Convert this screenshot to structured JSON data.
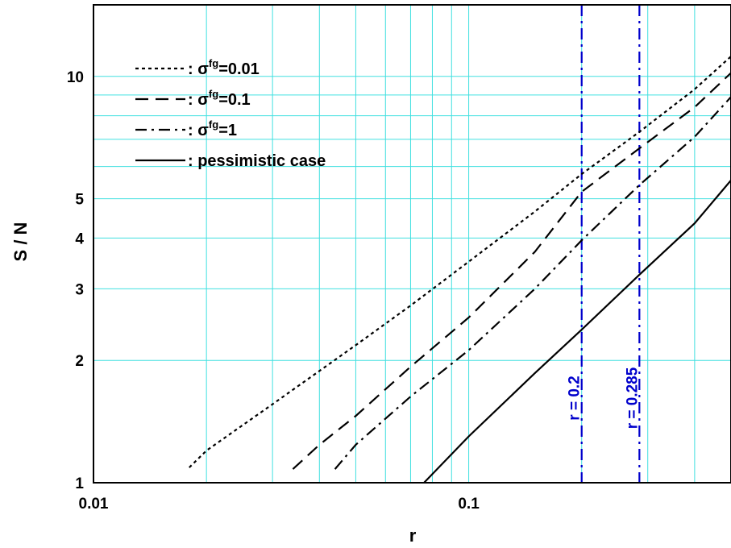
{
  "chart_data": {
    "type": "line",
    "xlabel": "r",
    "ylabel": "S / N",
    "x_scale": "log",
    "y_scale": "log",
    "xlim": [
      0.01,
      0.5
    ],
    "ylim": [
      1,
      15
    ],
    "grid": true,
    "grid_color": "#40e0e0",
    "legend_position": "top-left",
    "x_ticks": [
      {
        "value": 0.01,
        "label": "0.01"
      },
      {
        "value": 0.1,
        "label": "0.1"
      }
    ],
    "y_ticks": [
      {
        "value": 1,
        "label": "1"
      },
      {
        "value": 2,
        "label": "2"
      },
      {
        "value": 3,
        "label": "3"
      },
      {
        "value": 4,
        "label": "4"
      },
      {
        "value": 5,
        "label": "5"
      },
      {
        "value": 10,
        "label": "10"
      }
    ],
    "series": [
      {
        "legend_sigma": "σ",
        "legend_sup": "fg",
        "legend_value": "=0.01",
        "style": "dotted",
        "color": "#000000",
        "x": [
          0.018,
          0.02,
          0.03,
          0.05,
          0.07,
          0.1,
          0.15,
          0.2,
          0.285,
          0.4,
          0.5
        ],
        "y": [
          1.09,
          1.2,
          1.56,
          2.18,
          2.73,
          3.5,
          4.65,
          5.75,
          7.3,
          9.3,
          11.2
        ]
      },
      {
        "legend_sigma": "σ",
        "legend_sup": "fg",
        "legend_value": "=0.1",
        "style": "dashed",
        "color": "#000000",
        "x": [
          0.034,
          0.04,
          0.05,
          0.07,
          0.1,
          0.15,
          0.2,
          0.285,
          0.4,
          0.5
        ],
        "y": [
          1.08,
          1.24,
          1.46,
          1.93,
          2.55,
          3.7,
          5.2,
          6.65,
          8.4,
          10.2
        ]
      },
      {
        "legend_sigma": "σ",
        "legend_sup": "fg",
        "legend_value": "=1",
        "style": "dashdot",
        "color": "#000000",
        "x": [
          0.044,
          0.05,
          0.07,
          0.1,
          0.15,
          0.2,
          0.285,
          0.4,
          0.5
        ],
        "y": [
          1.08,
          1.24,
          1.63,
          2.12,
          3.0,
          3.95,
          5.4,
          7.1,
          8.9
        ]
      },
      {
        "legend_text": "pessimistic case",
        "style": "solid",
        "color": "#000000",
        "x": [
          0.076,
          0.1,
          0.15,
          0.2,
          0.285,
          0.4,
          0.5
        ],
        "y": [
          1.0,
          1.3,
          1.86,
          2.38,
          3.25,
          4.35,
          5.55
        ]
      }
    ],
    "annotations": [
      {
        "x": 0.2,
        "label": "r = 0.2",
        "color": "#0000cc",
        "style": "dashdot"
      },
      {
        "x": 0.285,
        "label": "r = 0.285",
        "color": "#0000cc",
        "style": "dashdot"
      }
    ],
    "legend_separator": ":"
  }
}
